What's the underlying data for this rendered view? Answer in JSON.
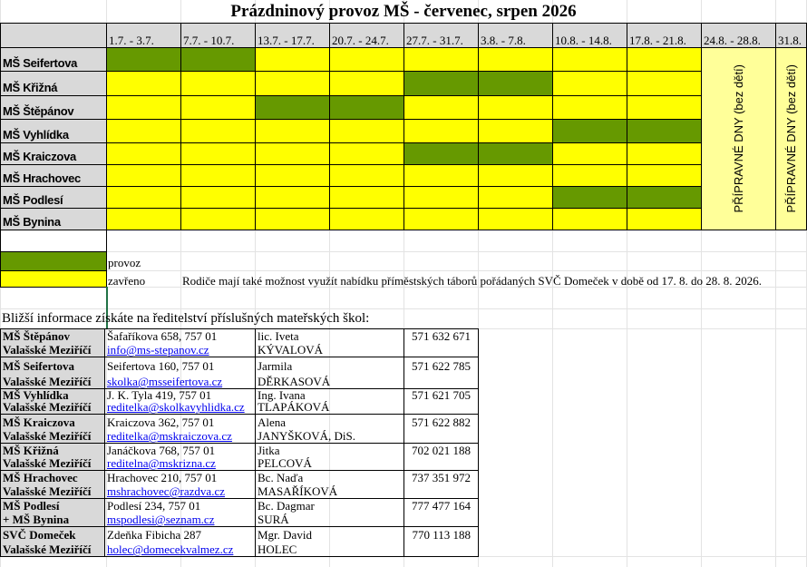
{
  "title": "Prázdninový provoz MŠ - červenec, srpen 2026",
  "colors": {
    "provoz": "#669900",
    "zavreno": "#ffff00",
    "pripravne": "#ffff99",
    "label_bg": "#d9d9d9"
  },
  "weeks": [
    "1.7. - 3.7.",
    "7.7. - 10.7.",
    "13.7. - 17.7.",
    "20.7. - 24.7.",
    "27.7. - 31.7.",
    "3.8. - 7.8.",
    "10.8. - 14.8.",
    "17.8. - 21.8.",
    "24.8. - 28.8.",
    "31.8."
  ],
  "schools": [
    {
      "name": "MŠ Seifertova",
      "open": [
        1,
        1,
        0,
        0,
        0,
        0,
        0,
        0
      ]
    },
    {
      "name": "MŠ Křižná",
      "open": [
        0,
        0,
        0,
        0,
        1,
        1,
        0,
        0
      ]
    },
    {
      "name": "MŠ Štěpánov",
      "open": [
        0,
        0,
        1,
        1,
        0,
        0,
        0,
        0
      ]
    },
    {
      "name": "MŠ Vyhlídka",
      "open": [
        0,
        0,
        0,
        0,
        0,
        0,
        1,
        1
      ]
    },
    {
      "name": "MŠ Kraiczova",
      "open": [
        0,
        0,
        0,
        0,
        1,
        1,
        0,
        0
      ]
    },
    {
      "name": "MŠ Hrachovec",
      "open": [
        0,
        0,
        0,
        0,
        0,
        0,
        0,
        0
      ]
    },
    {
      "name": "MŠ Podlesí",
      "open": [
        0,
        0,
        0,
        0,
        0,
        0,
        1,
        1
      ]
    },
    {
      "name": "MŠ Bynina",
      "open": [
        0,
        0,
        0,
        0,
        0,
        0,
        0,
        0
      ]
    }
  ],
  "pripravne": "PŘÍPRAVNÉ DNY (bez dětí)",
  "legend": {
    "provoz": "provoz",
    "zavreno": "zavřeno"
  },
  "note": "Rodiče mají také možnost využít nabídku příměstských táborů pořádaných SVČ Domeček v době od 17. 8. do 28. 8. 2026.",
  "info_heading": "Bližší informace získáte na ředitelství příslušných mateřských škol:",
  "contacts": [
    {
      "name1": "MŠ Štěpánov",
      "name2": "Valašské Meziříčí",
      "address": "Šafaříkova 658, 757 01",
      "email": "info@ms-stepanov.cz",
      "person1": "lic. Iveta",
      "person2": "KÝVALOVÁ",
      "phone": "571 632 671"
    },
    {
      "name1": "MŠ Seifertova",
      "name2": "Valašské Meziříčí",
      "address": "Seifertova 160, 757 01",
      "email": "skolka@msseifertova.cz",
      "person1": "Jarmila",
      "person2": "DĚRKASOVÁ",
      "phone": "571 622 785"
    },
    {
      "name1": "MŠ Vyhlídka",
      "name2": "Valašské Meziříčí",
      "address": "J. K. Tyla 419, 757 01",
      "email": "reditelka@skolkavyhlidka.cz",
      "person1": "Ing. Ivana",
      "person2": "TLAPÁKOVÁ",
      "phone": "571 621 705"
    },
    {
      "name1": "MŠ Kraiczova",
      "name2": "Valašské Meziříčí",
      "address": "Kraiczova 362, 757 01",
      "email": "reditelka@mskraiczova.cz",
      "person1": "Alena",
      "person2": "JANYŠKOVÁ, DiS.",
      "phone": "571 622 882"
    },
    {
      "name1": "MŠ Křižná",
      "name2": "Valašské Meziříčí",
      "address": "Janáčkova 768, 757 01",
      "email": "reditelna@mskrizna.cz",
      "person1": "Jitka",
      "person2": "PELCOVÁ",
      "phone": "702 021 188"
    },
    {
      "name1": "MŠ Hrachovec",
      "name2": "Valašské Meziříčí",
      "address": "Hrachovec 210, 757 01",
      "email": "mshrachovec@razdva.cz",
      "person1": "Bc. Naďa",
      "person2": "MASAŘÍKOVÁ",
      "phone": "737 351 972"
    },
    {
      "name1": "MŠ Podlesí",
      "name2": "+ MŠ Bynina",
      "address": "Podlesí 234, 757 01",
      "email": "mspodlesi@seznam.cz",
      "person1": "Bc. Dagmar",
      "person2": "SURÁ",
      "phone": "777 477 164"
    },
    {
      "name1": "SVČ Domeček",
      "name2": "Valašské Meziříčí",
      "address": "Zdeňka Fibicha 287",
      "email": "holec@domecekvalmez.cz",
      "person1": "Mgr. David",
      "person2": "HOLEC",
      "phone": "770 113 188"
    }
  ]
}
